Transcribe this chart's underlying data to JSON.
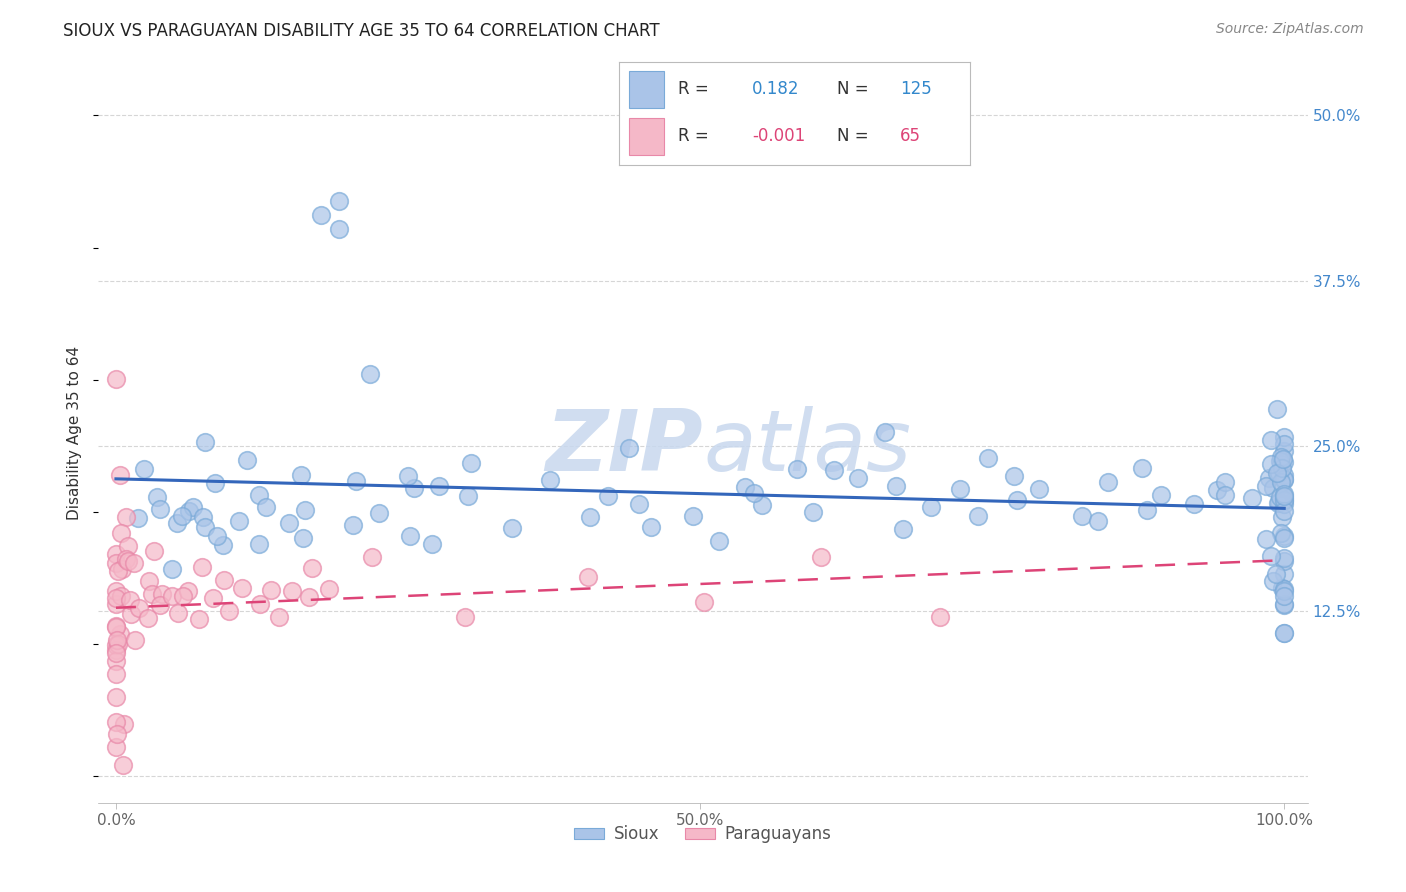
{
  "title": "SIOUX VS PARAGUAYAN DISABILITY AGE 35 TO 64 CORRELATION CHART",
  "source_text": "Source: ZipAtlas.com",
  "ylabel": "Disability Age 35 to 64",
  "background_color": "#ffffff",
  "grid_color": "#cccccc",
  "sioux_color": "#aac4e8",
  "sioux_edge_color": "#7aaad8",
  "paraguayan_color": "#f5b8c8",
  "paraguayan_edge_color": "#e888a8",
  "sioux_line_color": "#3366bb",
  "paraguayan_line_color": "#dd4477",
  "watermark_color": "#c8d8ee",
  "y_ticks": [
    0.0,
    0.125,
    0.25,
    0.375,
    0.5
  ],
  "y_tick_labels": [
    "",
    "12.5%",
    "25.0%",
    "37.5%",
    "50.0%"
  ],
  "sioux_x": [
    0.02,
    0.02,
    0.03,
    0.04,
    0.04,
    0.05,
    0.05,
    0.06,
    0.06,
    0.07,
    0.08,
    0.08,
    0.09,
    0.1,
    0.1,
    0.11,
    0.12,
    0.12,
    0.13,
    0.14,
    0.15,
    0.15,
    0.16,
    0.17,
    0.18,
    0.19,
    0.2,
    0.2,
    0.21,
    0.22,
    0.23,
    0.24,
    0.25,
    0.26,
    0.27,
    0.28,
    0.3,
    0.32,
    0.35,
    0.37,
    0.4,
    0.42,
    0.44,
    0.45,
    0.47,
    0.5,
    0.52,
    0.53,
    0.55,
    0.56,
    0.58,
    0.6,
    0.62,
    0.63,
    0.65,
    0.66,
    0.68,
    0.7,
    0.72,
    0.73,
    0.75,
    0.77,
    0.78,
    0.8,
    0.82,
    0.83,
    0.85,
    0.87,
    0.88,
    0.9,
    0.92,
    0.93,
    0.95,
    0.96,
    0.97,
    0.98,
    0.99,
    1.0,
    1.0,
    1.0,
    1.0,
    1.0,
    1.0,
    1.0,
    1.0,
    1.0,
    1.0,
    1.0,
    1.0,
    1.0,
    1.0,
    1.0,
    1.0,
    1.0,
    1.0,
    1.0,
    1.0,
    1.0,
    1.0,
    1.0,
    1.0,
    1.0,
    1.0,
    1.0,
    1.0,
    1.0,
    1.0,
    1.0,
    1.0,
    1.0,
    1.0,
    1.0,
    1.0,
    1.0,
    1.0,
    1.0,
    1.0,
    1.0,
    1.0,
    1.0,
    1.0,
    1.0,
    1.0,
    1.0,
    1.0
  ],
  "sioux_y": [
    0.2,
    0.21,
    0.22,
    0.19,
    0.21,
    0.18,
    0.2,
    0.22,
    0.19,
    0.21,
    0.23,
    0.2,
    0.18,
    0.21,
    0.2,
    0.19,
    0.22,
    0.2,
    0.21,
    0.2,
    0.19,
    0.21,
    0.2,
    0.22,
    0.42,
    0.41,
    0.43,
    0.2,
    0.22,
    0.3,
    0.21,
    0.19,
    0.22,
    0.2,
    0.21,
    0.19,
    0.2,
    0.22,
    0.2,
    0.21,
    0.19,
    0.2,
    0.22,
    0.21,
    0.2,
    0.21,
    0.19,
    0.22,
    0.2,
    0.21,
    0.22,
    0.2,
    0.21,
    0.23,
    0.22,
    0.21,
    0.2,
    0.22,
    0.21,
    0.2,
    0.23,
    0.22,
    0.21,
    0.23,
    0.22,
    0.2,
    0.21,
    0.23,
    0.22,
    0.21,
    0.2,
    0.23,
    0.22,
    0.21,
    0.23,
    0.22,
    0.21,
    0.22,
    0.23,
    0.24,
    0.21,
    0.22,
    0.23,
    0.2,
    0.22,
    0.23,
    0.24,
    0.21,
    0.22,
    0.23,
    0.24,
    0.22,
    0.21,
    0.23,
    0.24,
    0.22,
    0.21,
    0.2,
    0.23,
    0.24,
    0.22,
    0.21,
    0.2,
    0.24,
    0.23,
    0.22,
    0.21,
    0.2,
    0.19,
    0.18,
    0.17,
    0.16,
    0.15,
    0.14,
    0.13,
    0.12,
    0.11,
    0.14,
    0.15,
    0.16,
    0.17,
    0.16,
    0.15,
    0.14,
    0.13
  ],
  "para_x": [
    0.0,
    0.0,
    0.0,
    0.0,
    0.0,
    0.0,
    0.0,
    0.0,
    0.0,
    0.0,
    0.0,
    0.0,
    0.0,
    0.0,
    0.0,
    0.0,
    0.0,
    0.0,
    0.0,
    0.0,
    0.0,
    0.0,
    0.0,
    0.0,
    0.0,
    0.0,
    0.0,
    0.0,
    0.01,
    0.01,
    0.01,
    0.01,
    0.01,
    0.02,
    0.02,
    0.02,
    0.02,
    0.03,
    0.03,
    0.03,
    0.04,
    0.04,
    0.05,
    0.05,
    0.06,
    0.06,
    0.07,
    0.07,
    0.08,
    0.09,
    0.1,
    0.11,
    0.12,
    0.13,
    0.14,
    0.15,
    0.16,
    0.17,
    0.18,
    0.22,
    0.3,
    0.4,
    0.5,
    0.6,
    0.7
  ],
  "para_y": [
    0.3,
    0.22,
    0.2,
    0.18,
    0.17,
    0.16,
    0.15,
    0.14,
    0.13,
    0.12,
    0.11,
    0.1,
    0.09,
    0.08,
    0.07,
    0.06,
    0.05,
    0.04,
    0.03,
    0.02,
    0.01,
    0.15,
    0.14,
    0.13,
    0.12,
    0.11,
    0.1,
    0.09,
    0.18,
    0.17,
    0.16,
    0.14,
    0.12,
    0.17,
    0.15,
    0.13,
    0.11,
    0.16,
    0.14,
    0.12,
    0.15,
    0.13,
    0.14,
    0.12,
    0.15,
    0.13,
    0.14,
    0.12,
    0.13,
    0.14,
    0.13,
    0.14,
    0.13,
    0.14,
    0.13,
    0.14,
    0.13,
    0.14,
    0.13,
    0.14,
    0.13,
    0.14,
    0.13,
    0.14,
    0.13
  ]
}
